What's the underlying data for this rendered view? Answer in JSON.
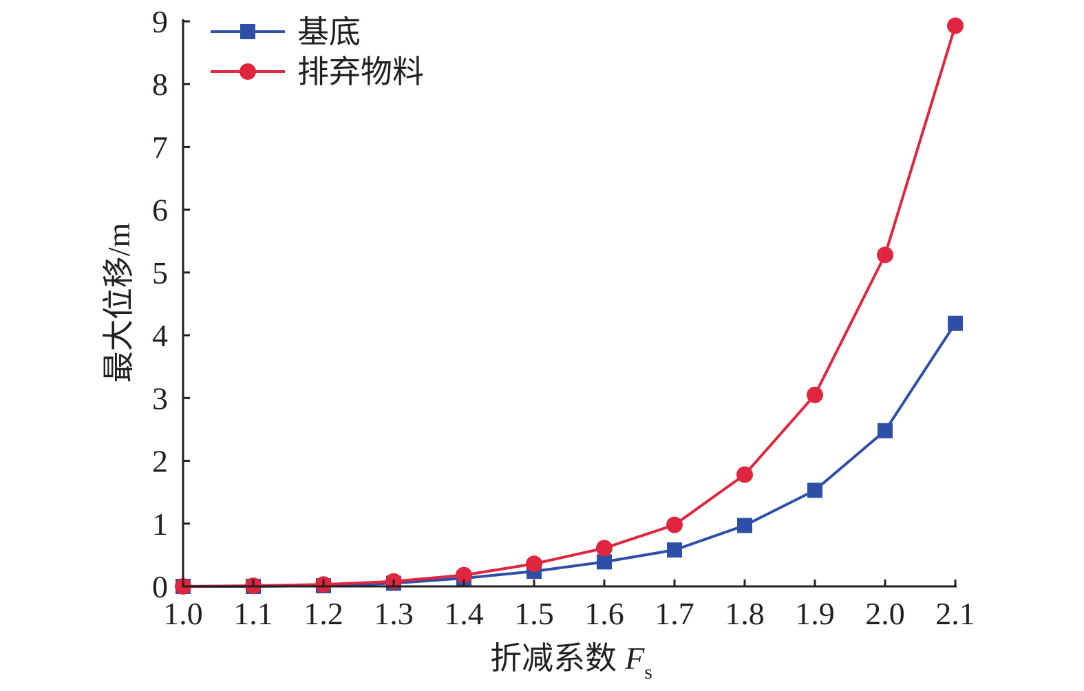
{
  "chart_data": {
    "type": "line",
    "x": [
      1.0,
      1.1,
      1.2,
      1.3,
      1.4,
      1.5,
      1.6,
      1.7,
      1.8,
      1.9,
      2.0,
      2.1
    ],
    "x_tick_labels": [
      "1.0",
      "1.1",
      "1.2",
      "1.3",
      "1.4",
      "1.5",
      "1.6",
      "1.7",
      "1.8",
      "1.9",
      "2.0",
      "2.1"
    ],
    "y_tick_labels": [
      "0",
      "1",
      "2",
      "3",
      "4",
      "5",
      "6",
      "7",
      "8",
      "9"
    ],
    "xlim": [
      1.0,
      2.1
    ],
    "ylim": [
      0,
      9
    ],
    "xlabel": "折减系数",
    "xlabel_var": "F",
    "xlabel_sub": "s",
    "ylabel": "最大位移/m",
    "grid": false,
    "legend_position": "top-left",
    "series": [
      {
        "name": "基底",
        "color": "#2e4fa7",
        "marker": "square",
        "values": [
          0.0,
          0.0,
          0.01,
          0.05,
          0.13,
          0.24,
          0.39,
          0.58,
          0.97,
          1.53,
          2.48,
          4.19
        ]
      },
      {
        "name": "排弃物料",
        "color": "#e0263e",
        "marker": "circle",
        "values": [
          0.0,
          0.01,
          0.03,
          0.08,
          0.18,
          0.36,
          0.61,
          0.98,
          1.78,
          3.05,
          5.28,
          8.93
        ]
      }
    ]
  }
}
